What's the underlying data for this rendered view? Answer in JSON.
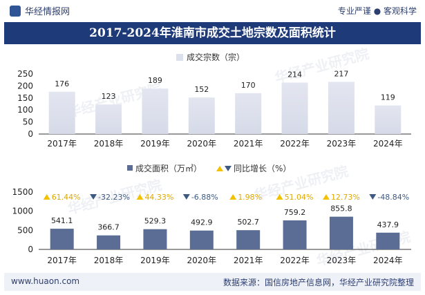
{
  "header": {
    "brand": "华经情报网",
    "slogan": "专业严谨 ● 客观科学"
  },
  "title": "2017-2024年淮南市成交土地宗数及面积统计",
  "footer": {
    "site": "www.huaon.com",
    "source": "数据来源：国信房地产信息网，华经产业研究院整理"
  },
  "watermark": "华经产业研究院",
  "colors": {
    "bar_top": "#dcdfec",
    "bar_bottom": "#5b6d94",
    "up": "#f2c200",
    "down": "#3d5a80",
    "pct_up": "#e0a800",
    "pct_down": "#3d5a80"
  },
  "chart_data": [
    {
      "type": "bar",
      "legend": "成交宗数（宗）",
      "categories": [
        "2017年",
        "2018年",
        "2019年",
        "2020年",
        "2021年",
        "2022年",
        "2023年",
        "2024年"
      ],
      "series": [
        {
          "name": "成交宗数（宗）",
          "values": [
            176,
            123,
            189,
            152,
            170,
            214,
            217,
            119
          ]
        }
      ],
      "ylim": [
        0,
        250
      ],
      "yticks": [
        0,
        50,
        100,
        150,
        200,
        250
      ],
      "value_labels": [
        "176",
        "123",
        "189",
        "152",
        "170",
        "214",
        "217",
        "119"
      ]
    },
    {
      "type": "bar",
      "legend": "成交面积（万㎡）",
      "legend2": "同比增长（%）",
      "categories": [
        "2017年",
        "2018年",
        "2019年",
        "2020年",
        "2021年",
        "2022年",
        "2023年",
        "2024年"
      ],
      "series": [
        {
          "name": "成交面积（万㎡）",
          "values": [
            541.1,
            366.7,
            529.3,
            492.9,
            502.7,
            759.2,
            855.8,
            437.9
          ]
        },
        {
          "name": "同比增长（%）",
          "values": [
            61.44,
            -32.23,
            44.33,
            -6.88,
            1.98,
            51.04,
            12.73,
            -48.84
          ]
        }
      ],
      "ylim": [
        0,
        1500
      ],
      "yticks": [
        0,
        500,
        1000,
        1500
      ],
      "value_labels": [
        "541.1",
        "366.7",
        "529.3",
        "492.9",
        "502.7",
        "759.2",
        "855.8",
        "437.9"
      ],
      "growth_labels": [
        "61.44%",
        "-32.23%",
        "44.33%",
        "-6.88%",
        "1.98%",
        "51.04%",
        "12.73%",
        "-48.84%"
      ]
    }
  ]
}
